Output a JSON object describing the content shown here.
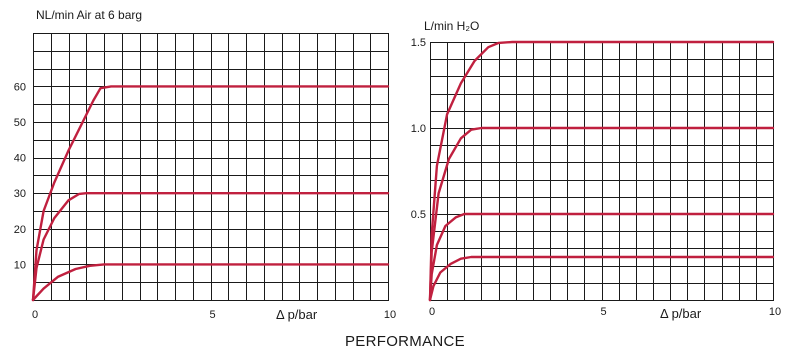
{
  "caption": "PERFORMANCE",
  "colors": {
    "curve": "#c0203f",
    "grid": "#1a1a1a"
  },
  "chart_data": [
    {
      "type": "line",
      "title": "",
      "ylabel": "NL/min Air at 6 barg",
      "xlabel": "Δ p/bar",
      "xlim": [
        0,
        10
      ],
      "ylim": [
        0,
        75
      ],
      "xticks": [
        0,
        5,
        10
      ],
      "yticks": [
        10,
        20,
        30,
        40,
        50,
        60
      ],
      "grid": true,
      "series": [
        {
          "x": [
            0,
            0.1,
            0.3,
            0.6,
            1.0,
            1.4,
            1.7,
            1.9,
            2.2,
            10
          ],
          "values": [
            0,
            14,
            25,
            33,
            42,
            50,
            56,
            59.5,
            60,
            60
          ]
        },
        {
          "x": [
            0,
            0.1,
            0.3,
            0.6,
            1.0,
            1.3,
            1.5,
            10
          ],
          "values": [
            0,
            9,
            17,
            23,
            28,
            29.8,
            30,
            30
          ]
        },
        {
          "x": [
            0,
            0.3,
            0.7,
            1.2,
            1.6,
            2.0,
            10
          ],
          "values": [
            0,
            3.2,
            6.5,
            8.7,
            9.6,
            10,
            10
          ]
        }
      ]
    },
    {
      "type": "line",
      "title": "",
      "ylabel": "L/min H₂O",
      "xlabel": "Δ p/bar",
      "xlim": [
        0,
        10
      ],
      "ylim": [
        0,
        1.5
      ],
      "xticks": [
        0,
        5,
        10
      ],
      "yticks": [
        0.5,
        1.0,
        1.5
      ],
      "ytick_labels": [
        "0.5",
        "1.0",
        "1.5"
      ],
      "grid": true,
      "series": [
        {
          "x": [
            0,
            0.05,
            0.2,
            0.5,
            0.9,
            1.3,
            1.7,
            2.0,
            2.4,
            10
          ],
          "values": [
            0,
            0.38,
            0.78,
            1.08,
            1.26,
            1.39,
            1.47,
            1.495,
            1.5,
            1.5
          ]
        },
        {
          "x": [
            0,
            0.05,
            0.25,
            0.55,
            0.9,
            1.2,
            1.5,
            10
          ],
          "values": [
            0,
            0.28,
            0.62,
            0.82,
            0.94,
            0.99,
            1.0,
            1.0
          ]
        },
        {
          "x": [
            0,
            0.05,
            0.2,
            0.45,
            0.75,
            1.0,
            10
          ],
          "values": [
            0,
            0.15,
            0.32,
            0.43,
            0.48,
            0.5,
            0.5
          ]
        },
        {
          "x": [
            0,
            0.1,
            0.3,
            0.6,
            0.9,
            1.2,
            10
          ],
          "values": [
            0,
            0.08,
            0.16,
            0.21,
            0.24,
            0.25,
            0.25
          ]
        }
      ]
    }
  ]
}
